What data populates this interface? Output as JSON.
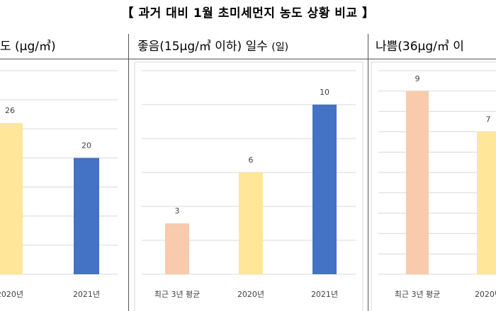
{
  "title": "【 과거 대비 1월 초미세먼지 농도 상황 비교 】",
  "chart_data": [
    {
      "type": "bar",
      "header": {
        "main": "도 (μg/㎥)",
        "unit": ""
      },
      "categories": [
        "2020년",
        "2021년"
      ],
      "values": [
        26,
        20
      ],
      "colors": [
        "#FFE699",
        "#4472C4"
      ],
      "ylim": [
        0,
        35
      ],
      "grid": true
    },
    {
      "type": "bar",
      "header": {
        "main": "좋음(15μg/㎥  이하)  일수",
        "unit": "(일)"
      },
      "categories": [
        "최근 3년 평균",
        "2020년",
        "2021년"
      ],
      "values": [
        3,
        6,
        10
      ],
      "colors": [
        "#F8CBAD",
        "#FFE699",
        "#4472C4"
      ],
      "ylim": [
        0,
        12
      ],
      "grid": true
    },
    {
      "type": "bar",
      "header": {
        "main": "나쁨(36μg/㎥  이",
        "unit": ""
      },
      "categories": [
        "최근 3년 평균",
        "2020년"
      ],
      "values": [
        9,
        7
      ],
      "colors": [
        "#F8CBAD",
        "#FFE699"
      ],
      "ylim": [
        0,
        10
      ],
      "grid": true
    }
  ]
}
